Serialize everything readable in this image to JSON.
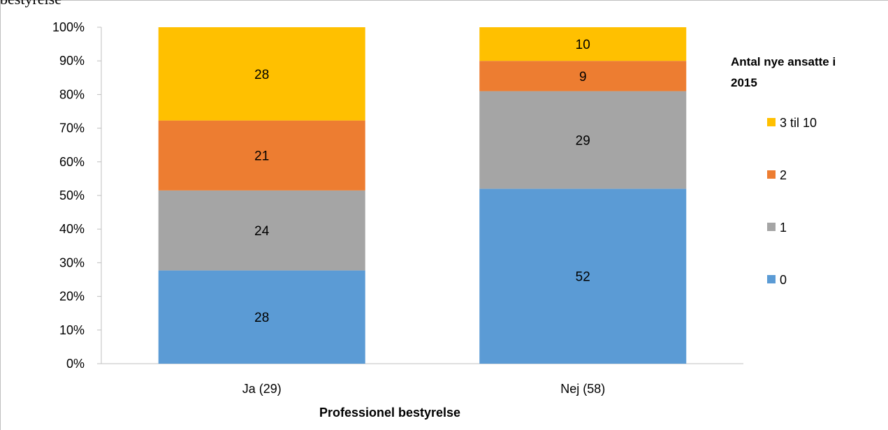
{
  "header_fragment": "bestyrelse",
  "chart_data": {
    "type": "bar",
    "stacked": true,
    "percent_stacked": true,
    "categories": [
      "Ja (29)",
      "Nej (58)"
    ],
    "series": [
      {
        "name": "0",
        "values": [
          28,
          52
        ],
        "color": "#5b9bd5"
      },
      {
        "name": "1",
        "values": [
          24,
          29
        ],
        "color": "#a5a5a5"
      },
      {
        "name": "2",
        "values": [
          21,
          9
        ],
        "color": "#ed7d31"
      },
      {
        "name": "3 til 10",
        "values": [
          28,
          10
        ],
        "color": "#ffc000"
      }
    ],
    "xlabel": "Professionel bestyrelse",
    "ylabel": "",
    "ylim": [
      0,
      100
    ],
    "yticks": [
      "0%",
      "10%",
      "20%",
      "30%",
      "40%",
      "50%",
      "60%",
      "70%",
      "80%",
      "90%",
      "100%"
    ],
    "legend_title": "Antal nye ansatte i 2015",
    "legend_position": "right",
    "grid": false
  }
}
